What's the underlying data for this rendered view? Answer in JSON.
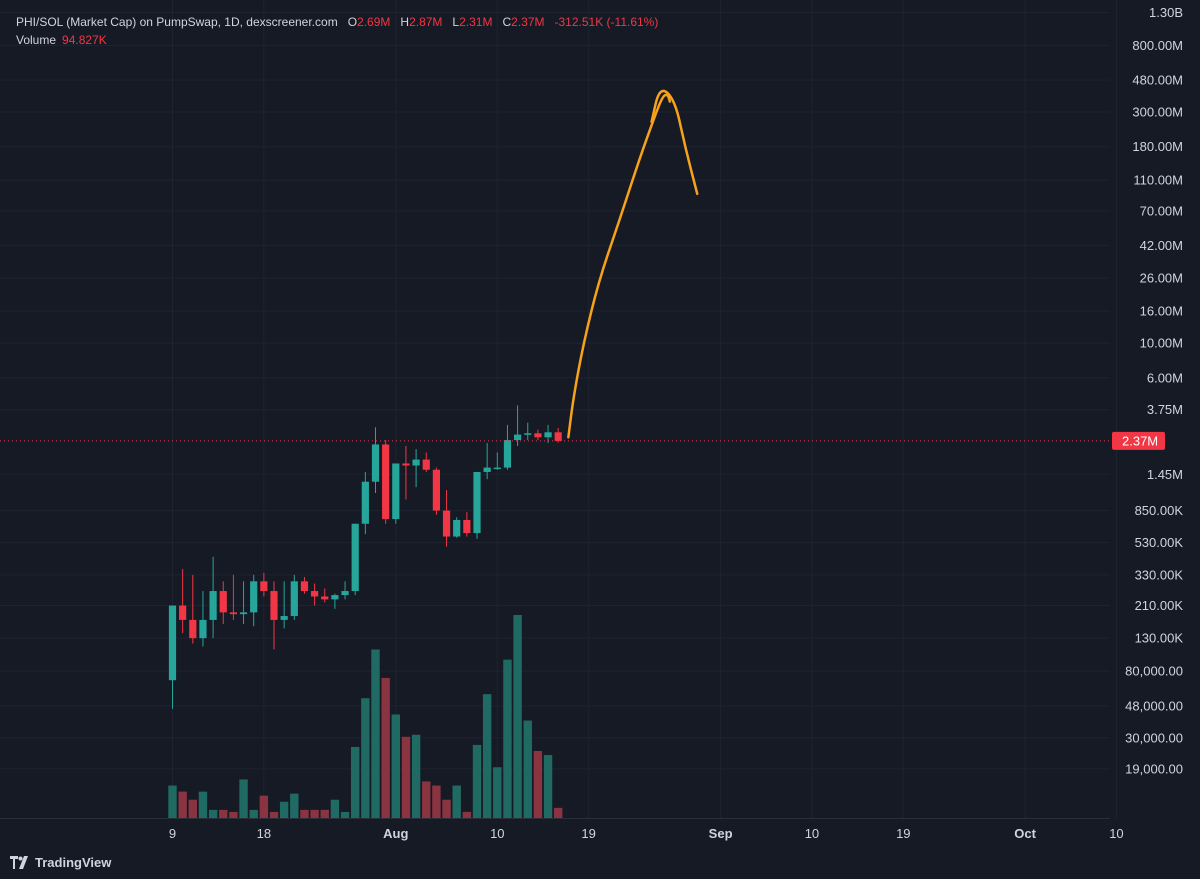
{
  "header": {
    "symbol": "PHI/SOL (Market Cap) on PumpSwap, 1D, dexscreener.com",
    "open_label": "O",
    "open": "2.69M",
    "high_label": "H",
    "high": "2.87M",
    "low_label": "L",
    "low": "2.31M",
    "close_label": "C",
    "close": "2.37M",
    "change": "-312.51K (-11.61%)"
  },
  "volume": {
    "label": "Volume",
    "value": "94.827K"
  },
  "branding": {
    "logo_text": "TradingView"
  },
  "colors": {
    "background": "#161a25",
    "up": "#26a69a",
    "down": "#f23645",
    "up_volume": "#1f6b63",
    "down_volume": "#8a3442",
    "drawing": "#f7a21b",
    "grid": "#1f2330",
    "axis_text": "#d1d4dc"
  },
  "chart_data": {
    "type": "candlestick",
    "y_scale": "log",
    "y_ticks": [
      "1.30B",
      "800.00M",
      "480.00M",
      "300.00M",
      "180.00M",
      "110.00M",
      "70.00M",
      "42.00M",
      "26.00M",
      "16.00M",
      "10.00M",
      "6.00M",
      "3.75M",
      "1.45M",
      "850.00K",
      "530.00K",
      "330.00K",
      "210.00K",
      "130.00K",
      "80,000.00",
      "48,000.00",
      "30,000.00",
      "19,000.00"
    ],
    "y_tick_values": [
      1300000000,
      800000000,
      480000000,
      300000000,
      180000000,
      110000000,
      70000000,
      42000000,
      26000000,
      16000000,
      10000000,
      6000000,
      3750000,
      1450000,
      850000,
      530000,
      330000,
      210000,
      130000,
      80000,
      48000,
      30000,
      19000
    ],
    "ylim": [
      12000,
      1450000000
    ],
    "x_ticks": [
      "9",
      "18",
      "Aug",
      "10",
      "19",
      "Sep",
      "10",
      "19",
      "Oct",
      "10"
    ],
    "x_tick_days": [
      0,
      9,
      22,
      32,
      41,
      54,
      63,
      72,
      84,
      93
    ],
    "last_price_label": "2.37M",
    "last_price": 2370000,
    "candles": [
      {
        "date": "Jul 9",
        "open": 70000,
        "high": 210000,
        "low": 46000,
        "close": 210000
      },
      {
        "date": "Jul 10",
        "open": 210000,
        "high": 360000,
        "low": 140000,
        "close": 170000
      },
      {
        "date": "Jul 11",
        "open": 170000,
        "high": 330000,
        "low": 120000,
        "close": 130000
      },
      {
        "date": "Jul 12",
        "open": 130000,
        "high": 260000,
        "low": 115000,
        "close": 170000
      },
      {
        "date": "Jul 13",
        "open": 170000,
        "high": 430000,
        "low": 130000,
        "close": 260000
      },
      {
        "date": "Jul 14",
        "open": 260000,
        "high": 300000,
        "low": 160000,
        "close": 190000
      },
      {
        "date": "Jul 15",
        "open": 190000,
        "high": 330000,
        "low": 170000,
        "close": 185000
      },
      {
        "date": "Jul 16",
        "open": 185000,
        "high": 300000,
        "low": 160000,
        "close": 190000
      },
      {
        "date": "Jul 17",
        "open": 190000,
        "high": 330000,
        "low": 155000,
        "close": 300000
      },
      {
        "date": "Jul 18",
        "open": 300000,
        "high": 340000,
        "low": 240000,
        "close": 260000
      },
      {
        "date": "Jul 19",
        "open": 260000,
        "high": 300000,
        "low": 110000,
        "close": 170000
      },
      {
        "date": "Jul 20",
        "open": 170000,
        "high": 300000,
        "low": 150000,
        "close": 180000
      },
      {
        "date": "Jul 21",
        "open": 180000,
        "high": 330000,
        "low": 170000,
        "close": 300000
      },
      {
        "date": "Jul 22",
        "open": 300000,
        "high": 320000,
        "low": 250000,
        "close": 260000
      },
      {
        "date": "Jul 23",
        "open": 260000,
        "high": 290000,
        "low": 210000,
        "close": 240000
      },
      {
        "date": "Jul 24",
        "open": 240000,
        "high": 270000,
        "low": 220000,
        "close": 230000
      },
      {
        "date": "Jul 25",
        "open": 230000,
        "high": 250000,
        "low": 200000,
        "close": 245000
      },
      {
        "date": "Jul 26",
        "open": 245000,
        "high": 300000,
        "low": 230000,
        "close": 260000
      },
      {
        "date": "Jul 27",
        "open": 260000,
        "high": 700000,
        "low": 245000,
        "close": 700000
      },
      {
        "date": "Jul 28",
        "open": 700000,
        "high": 1500000,
        "low": 600000,
        "close": 1300000
      },
      {
        "date": "Jul 29",
        "open": 1300000,
        "high": 2900000,
        "low": 1100000,
        "close": 2250000
      },
      {
        "date": "Jul 30",
        "open": 2250000,
        "high": 2400000,
        "low": 700000,
        "close": 750000
      },
      {
        "date": "Jul 31",
        "open": 750000,
        "high": 1700000,
        "low": 700000,
        "close": 1700000
      },
      {
        "date": "Aug 1",
        "open": 1700000,
        "high": 2200000,
        "low": 1000000,
        "close": 1650000
      },
      {
        "date": "Aug 2",
        "open": 1650000,
        "high": 2100000,
        "low": 1200000,
        "close": 1800000
      },
      {
        "date": "Aug 3",
        "open": 1800000,
        "high": 2000000,
        "low": 1500000,
        "close": 1550000
      },
      {
        "date": "Aug 4",
        "open": 1550000,
        "high": 1600000,
        "low": 800000,
        "close": 850000
      },
      {
        "date": "Aug 5",
        "open": 850000,
        "high": 1150000,
        "low": 500000,
        "close": 580000
      },
      {
        "date": "Aug 6",
        "open": 580000,
        "high": 770000,
        "low": 570000,
        "close": 740000
      },
      {
        "date": "Aug 7",
        "open": 740000,
        "high": 830000,
        "low": 580000,
        "close": 610000
      },
      {
        "date": "Aug 8",
        "open": 610000,
        "high": 1500000,
        "low": 560000,
        "close": 1500000
      },
      {
        "date": "Aug 9",
        "open": 1500000,
        "high": 2300000,
        "low": 1350000,
        "close": 1600000
      },
      {
        "date": "Aug 10",
        "open": 1600000,
        "high": 2000000,
        "low": 1550000,
        "close": 1600000
      },
      {
        "date": "Aug 11",
        "open": 1600000,
        "high": 3000000,
        "low": 1550000,
        "close": 2400000
      },
      {
        "date": "Aug 12",
        "open": 2400000,
        "high": 4000000,
        "low": 2200000,
        "close": 2600000
      },
      {
        "date": "Aug 13",
        "open": 2600000,
        "high": 3100000,
        "low": 2400000,
        "close": 2650000
      },
      {
        "date": "Aug 14",
        "open": 2650000,
        "high": 2800000,
        "low": 2400000,
        "close": 2500000
      },
      {
        "date": "Aug 15",
        "open": 2500000,
        "high": 3000000,
        "low": 2300000,
        "close": 2690000
      },
      {
        "date": "Aug 16",
        "open": 2690000,
        "high": 2870000,
        "low": 2310000,
        "close": 2370000
      }
    ],
    "volume_series": [
      16,
      13,
      9,
      13,
      4,
      4,
      3,
      19,
      4,
      11,
      3,
      8,
      12,
      4,
      4,
      4,
      9,
      3,
      35,
      59,
      83,
      69,
      51,
      40,
      41,
      18,
      16,
      9,
      16,
      3,
      36,
      61,
      25,
      78,
      100,
      48,
      33,
      31,
      5
    ],
    "drawing": {
      "type": "freehand-arrow",
      "path_days": [
        39.0,
        39.5,
        40.5,
        42.0,
        44.0,
        46.0,
        47.5,
        48.3,
        48.8,
        49.0
      ],
      "path_values": [
        2500000,
        4500000,
        10000000,
        25000000,
        60000000,
        150000000,
        280000000,
        380000000,
        390000000,
        350000000
      ],
      "head_days": [
        47.2,
        48.0,
        49.5,
        50.5,
        51.7
      ],
      "head_values": [
        260000000,
        440000000,
        360000000,
        180000000,
        90000000
      ]
    }
  }
}
